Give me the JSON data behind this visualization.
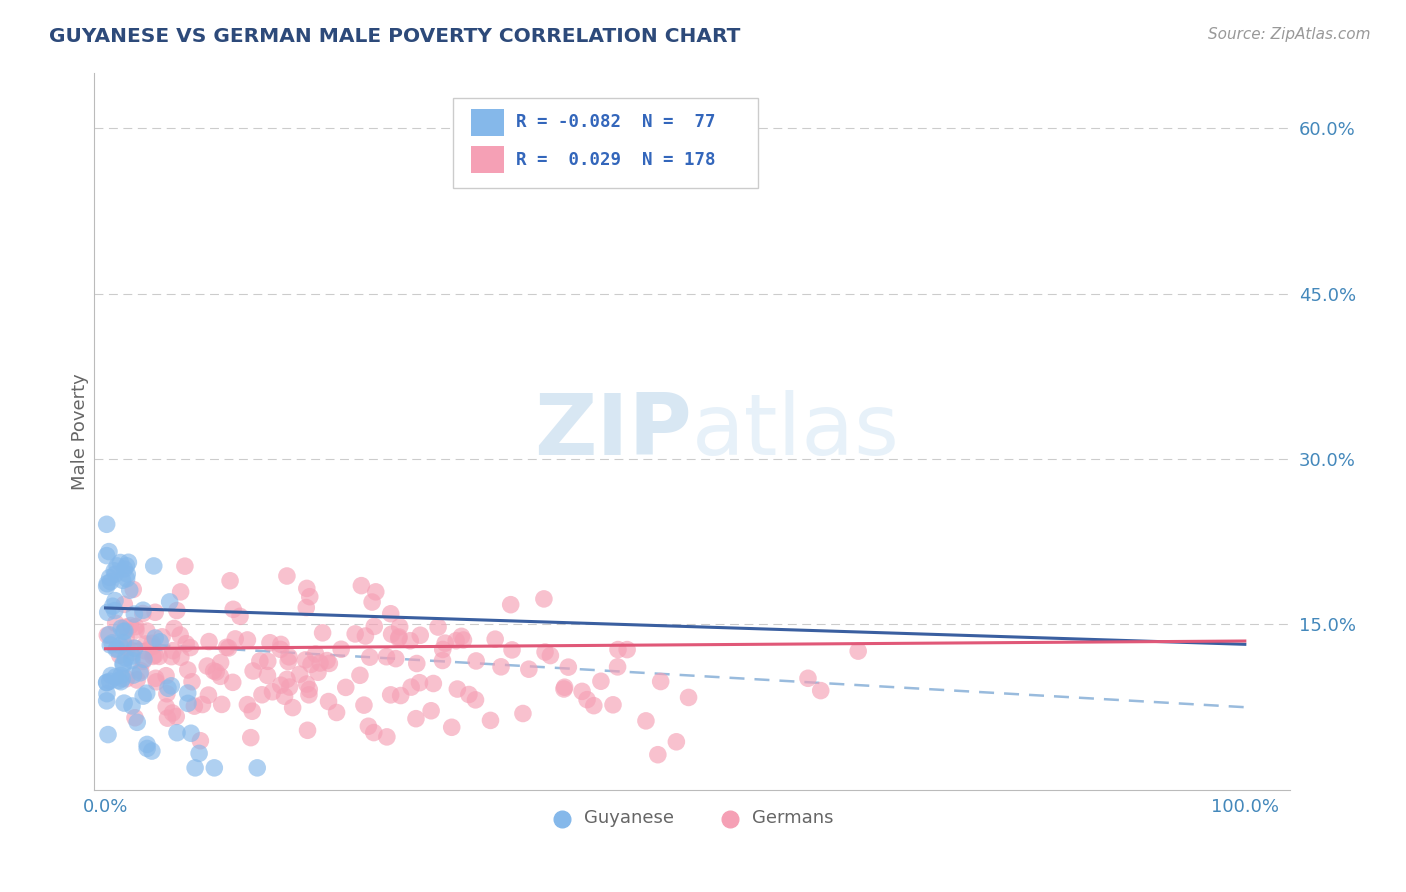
{
  "title": "GUYANESE VS GERMAN MALE POVERTY CORRELATION CHART",
  "source": "Source: ZipAtlas.com",
  "ylabel_label": "Male Poverty",
  "ylim": [
    0.0,
    0.65
  ],
  "xlim": [
    -0.01,
    1.04
  ],
  "guyanese_R": -0.082,
  "guyanese_N": 77,
  "german_R": 0.029,
  "german_N": 178,
  "blue_color": "#85B8EA",
  "pink_color": "#F5A0B5",
  "blue_line_color": "#3A5FA0",
  "pink_line_color": "#E05878",
  "dashed_line_color": "#99BBDD",
  "background_color": "#FFFFFF",
  "title_color": "#2D4A7A",
  "axis_label_color": "#666666",
  "tick_color": "#4488BB",
  "watermark_color": "#DCE8F5",
  "legend_R_color": "#3366BB",
  "legend_N_color": "#3366BB",
  "seed": 12
}
